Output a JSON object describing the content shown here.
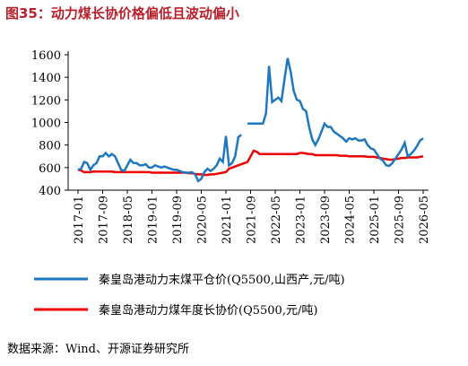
{
  "chart_data": {
    "type": "line",
    "title": "图35：动力煤长协价格偏低且波动偏小",
    "source": "数据来源：Wind、开源证券研究所",
    "categories": [
      "2017-01",
      null,
      null,
      null,
      null,
      null,
      null,
      null,
      "2017-09",
      null,
      null,
      null,
      null,
      null,
      null,
      null,
      "2018-05",
      null,
      null,
      null,
      null,
      null,
      null,
      null,
      "2019-01",
      null,
      null,
      null,
      null,
      null,
      null,
      null,
      "2019-09",
      null,
      null,
      null,
      null,
      null,
      null,
      null,
      "2020-05",
      null,
      null,
      null,
      null,
      null,
      null,
      null,
      "2021-01",
      null,
      null,
      null,
      null,
      null,
      null,
      null,
      "2021-09",
      null,
      null,
      null,
      null,
      null,
      null,
      null,
      "2022-05",
      null,
      null,
      null,
      null,
      null,
      null,
      null,
      "2023-01",
      null,
      null,
      null,
      null,
      null,
      null,
      null,
      "2023-09",
      null,
      null,
      null,
      null,
      null,
      null,
      null,
      "2024-05",
      null,
      null,
      null,
      null,
      null,
      null,
      null,
      "2025-01",
      null,
      null,
      null,
      null,
      null,
      null,
      null,
      "2025-09",
      null,
      null,
      null,
      null,
      null,
      null,
      null,
      "2026-05"
    ],
    "series": [
      {
        "name": "秦皇岛港动力末煤平仓价(Q5500,山西产,元/吨)",
        "color": "#1f77c0",
        "values": [
          580,
          590,
          650,
          640,
          580,
          620,
          640,
          700,
          700,
          730,
          700,
          720,
          700,
          640,
          580,
          570,
          620,
          670,
          640,
          640,
          620,
          620,
          630,
          600,
          600,
          620,
          610,
          600,
          610,
          600,
          590,
          580,
          580,
          570,
          560,
          555,
          555,
          560,
          540,
          480,
          500,
          560,
          590,
          570,
          590,
          620,
          680,
          650,
          880,
          620,
          640,
          700,
          870,
          890,
          null,
          990,
          990,
          990,
          990,
          990,
          990,
          1080,
          1500,
          1180,
          1200,
          1220,
          1190,
          1380,
          1570,
          1450,
          1280,
          1200,
          1190,
          1120,
          1100,
          960,
          850,
          800,
          850,
          920,
          990,
          960,
          960,
          920,
          900,
          880,
          860,
          830,
          860,
          850,
          860,
          840,
          840,
          850,
          800,
          770,
          760,
          720,
          680,
          660,
          620,
          615,
          640,
          680,
          720,
          760,
          820,
          700,
          720,
          750,
          790,
          840,
          860
        ]
      },
      {
        "name": "秦皇岛港动力煤年度长协价(Q5500,元/吨)",
        "color": "#ee0000",
        "values": [
          580,
          575,
          560,
          560,
          560,
          565,
          565,
          565,
          565,
          565,
          565,
          565,
          560,
          560,
          560,
          560,
          560,
          560,
          560,
          560,
          560,
          560,
          560,
          560,
          555,
          555,
          555,
          555,
          555,
          555,
          555,
          555,
          555,
          555,
          555,
          555,
          550,
          550,
          545,
          540,
          540,
          535,
          535,
          540,
          540,
          545,
          550,
          555,
          560,
          590,
          600,
          610,
          620,
          630,
          640,
          650,
          700,
          750,
          740,
          720,
          720,
          720,
          720,
          720,
          720,
          720,
          720,
          720,
          720,
          720,
          720,
          720,
          730,
          730,
          725,
          720,
          720,
          710,
          710,
          710,
          710,
          710,
          710,
          710,
          710,
          705,
          705,
          705,
          700,
          700,
          700,
          700,
          700,
          700,
          695,
          695,
          695,
          690,
          685,
          680,
          675,
          670,
          670,
          675,
          680,
          685,
          685,
          690,
          690,
          690,
          690,
          695,
          700
        ]
      }
    ],
    "ylim": [
      400,
      1600
    ],
    "yticks": [
      400,
      600,
      800,
      1000,
      1200,
      1400,
      1600
    ]
  }
}
